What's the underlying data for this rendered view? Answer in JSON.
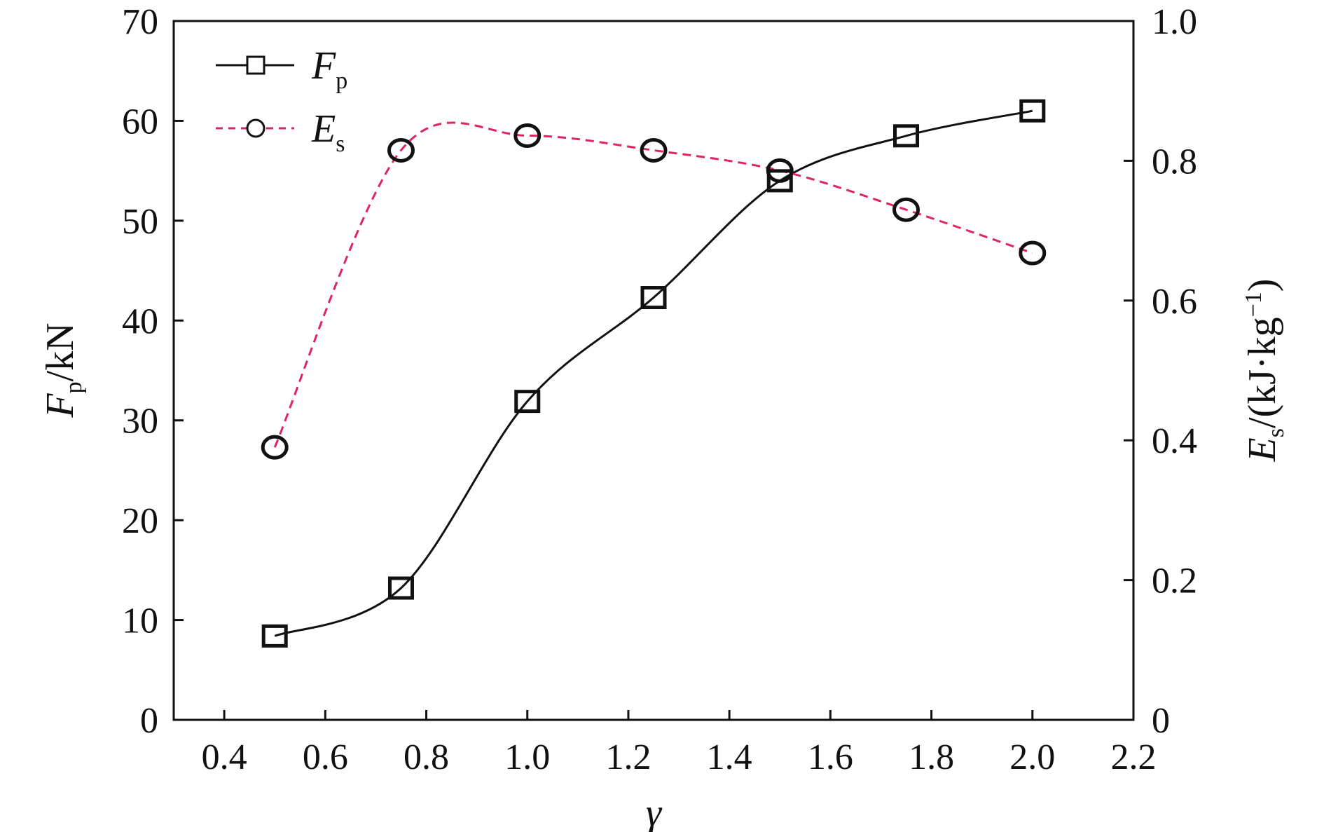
{
  "chart_data": {
    "type": "line",
    "title": "",
    "x": [
      0.5,
      0.75,
      1.0,
      1.25,
      1.5,
      1.75,
      2.0
    ],
    "xlabel": "γ",
    "xlim": [
      0.3,
      2.2
    ],
    "xticks": [
      0.4,
      0.6,
      0.8,
      1.0,
      1.2,
      1.4,
      1.6,
      1.8,
      2.0,
      2.2
    ],
    "xtick_labels": [
      "0.4",
      "0.6",
      "0.8",
      "1.0",
      "1.2",
      "1.4",
      "1.6",
      "1.8",
      "2.0",
      "2.2"
    ],
    "y_left": {
      "label_main": "F",
      "label_sub": "p",
      "label_rest": "/kN",
      "lim": [
        0,
        70
      ],
      "ticks": [
        0,
        10,
        20,
        30,
        40,
        50,
        60,
        70
      ],
      "tick_labels": [
        "0",
        "10",
        "20",
        "30",
        "40",
        "50",
        "60",
        "70"
      ]
    },
    "y_right": {
      "label_main": "E",
      "label_sub": "s",
      "label_rest": "/(kJ·kg",
      "label_sup": "−1",
      "label_close": ")",
      "lim": [
        0,
        1.0
      ],
      "ticks": [
        0,
        0.2,
        0.4,
        0.6,
        0.8,
        1.0
      ],
      "tick_labels": [
        "0",
        "0.2",
        "0.4",
        "0.6",
        "0.8",
        "1.0"
      ]
    },
    "series": [
      {
        "name_main": "F",
        "name_sub": "p",
        "axis": "left",
        "marker": "square",
        "line": "solid",
        "color": "#111111",
        "values": [
          8.4,
          13.2,
          31.9,
          42.3,
          54.0,
          58.5,
          61.0
        ]
      },
      {
        "name_main": "E",
        "name_sub": "s",
        "axis": "right",
        "marker": "circle",
        "line": "dashed",
        "color": "#e0245e",
        "values": [
          0.39,
          0.815,
          0.836,
          0.815,
          0.786,
          0.73,
          0.668
        ]
      }
    ],
    "legend_position": "top-left",
    "grid": false
  }
}
